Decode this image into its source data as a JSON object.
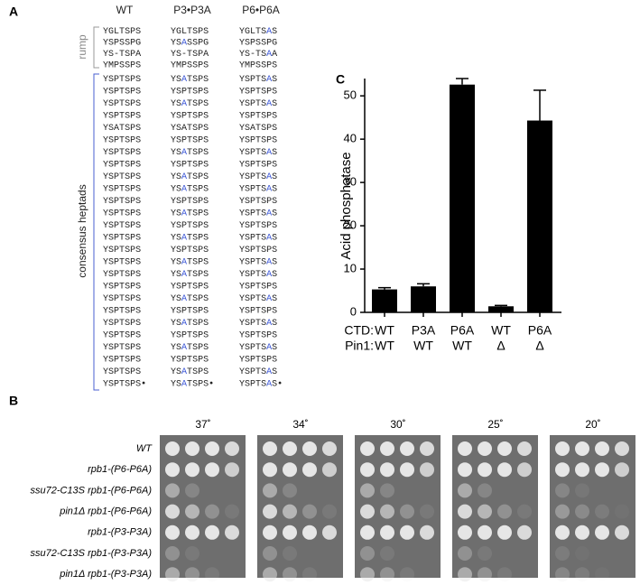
{
  "panel_a": {
    "label": "A",
    "headers": [
      "WT",
      "P3•P3A",
      "P6•P6A"
    ],
    "group_labels": [
      "rump",
      "consensus heptads"
    ],
    "rump_rows": [
      [
        "YGLTSPS",
        "YGLTSPS",
        "YGLTSAS"
      ],
      [
        "YSPSSPG",
        "YSASSPG",
        "YSPSSPG"
      ],
      [
        "YS-TSPA",
        "YS-TSPA",
        "YS-TSAA"
      ],
      [
        "YMPSSPS",
        "YMPSSPS",
        "YMPSSPS"
      ]
    ],
    "heptad_rows": [
      [
        "YSPTSPS",
        "YSATSPS",
        "YSPTSAS"
      ],
      [
        "YSPTSPS",
        "YSPTSPS",
        "YSPTSPS"
      ],
      [
        "YSPTSPS",
        "YSATSPS",
        "YSPTSAS"
      ],
      [
        "YSPTSPS",
        "YSPTSPS",
        "YSPTSPS"
      ],
      [
        "YSATSPS",
        "YSATSPS",
        "YSATSPS"
      ],
      [
        "YSPTSPS",
        "YSPTSPS",
        "YSPTSPS"
      ],
      [
        "YSPTSPS",
        "YSATSPS",
        "YSPTSAS"
      ],
      [
        "YSPTSPS",
        "YSPTSPS",
        "YSPTSPS"
      ],
      [
        "YSPTSPS",
        "YSATSPS",
        "YSPTSAS"
      ],
      [
        "YSPTSPS",
        "YSATSPS",
        "YSPTSAS"
      ],
      [
        "YSPTSPS",
        "YSPTSPS",
        "YSPTSPS"
      ],
      [
        "YSPTSPS",
        "YSATSPS",
        "YSPTSAS"
      ],
      [
        "YSPTSPS",
        "YSPTSPS",
        "YSPTSPS"
      ],
      [
        "YSPTSPS",
        "YSATSPS",
        "YSPTSAS"
      ],
      [
        "YSPTSPS",
        "YSPTSPS",
        "YSPTSPS"
      ],
      [
        "YSPTSPS",
        "YSATSPS",
        "YSPTSAS"
      ],
      [
        "YSPTSPS",
        "YSATSPS",
        "YSPTSAS"
      ],
      [
        "YSPTSPS",
        "YSPTSPS",
        "YSPTSPS"
      ],
      [
        "YSPTSPS",
        "YSATSPS",
        "YSPTSAS"
      ],
      [
        "YSPTSPS",
        "YSPTSPS",
        "YSPTSPS"
      ],
      [
        "YSPTSPS",
        "YSATSPS",
        "YSPTSAS"
      ],
      [
        "YSPTSPS",
        "YSPTSPS",
        "YSPTSPS"
      ],
      [
        "YSPTSPS",
        "YSATSPS",
        "YSPTSAS"
      ],
      [
        "YSPTSPS",
        "YSPTSPS",
        "YSPTSPS"
      ],
      [
        "YSPTSPS",
        "YSATSPS",
        "YSPTSAS"
      ],
      [
        "YSPTSPS•",
        "YSATSPS•",
        "YSPTSAS•"
      ]
    ]
  },
  "panel_b": {
    "label": "B",
    "temperatures": [
      "37˚",
      "34˚",
      "30˚",
      "25˚",
      "20˚"
    ],
    "strains": [
      "WT",
      "rpb1-(P6-P6A)",
      "ssu72-C13S  rpb1-(P6-P6A)",
      "pin1Δ rpb1-(P6-P6A)",
      "rpb1-(P3-P3A)",
      "ssu72-C13S  rpb1-(P3-P3A)",
      "pin1Δ rpb1-(P3-P3A)"
    ]
  },
  "panel_c": {
    "label": "C",
    "chart_data": {
      "type": "bar",
      "y_label": "Acid phosphatase",
      "category_row_labels": [
        "CTD:",
        "Pin1:"
      ],
      "categories": [
        "WT",
        "P3A",
        "P6A",
        "WT",
        "P6A"
      ],
      "categories_2": [
        "WT",
        "WT",
        "WT",
        "Δ",
        "Δ"
      ],
      "values": [
        5.3,
        6.0,
        52.6,
        1.4,
        44.3
      ],
      "errors": [
        0.4,
        0.6,
        1.4,
        0.2,
        7.0
      ],
      "color": "#000000",
      "ylim": [
        0,
        54
      ],
      "yticks": [
        0,
        10,
        20,
        30,
        40,
        50
      ]
    }
  }
}
